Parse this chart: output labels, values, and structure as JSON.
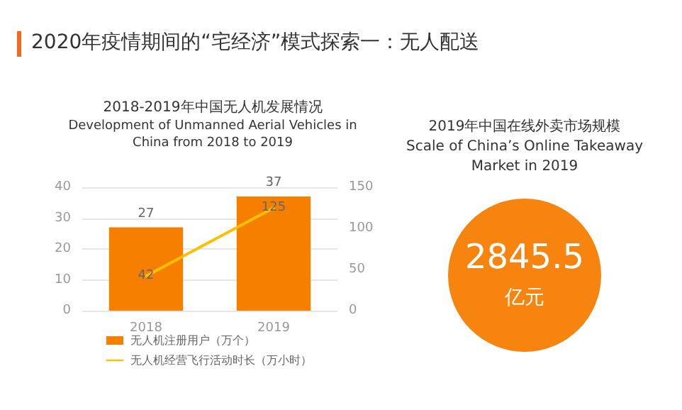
{
  "chart_data": [
    {
      "type": "other",
      "title": "2020年疫情期间的“宅经济”模式探索一：无人配送",
      "color": "#f26b1d"
    },
    {
      "type": "bar",
      "title": "2018-2019年中国无人机发展情况",
      "subtitle": "Development of Unmanned Aerial Vehicles in\nChina from 2018 to 2019",
      "categories": [
        "2018",
        "2019"
      ],
      "series": [
        {
          "name": "无人机注册用户（万个）",
          "color": "#f77f00",
          "values": [
            27,
            37
          ]
        },
        {
          "name": "无人机经营飞行活动时长（万小时）",
          "type": "line",
          "axis": "y2",
          "color": "#ffc000",
          "values": [
            42,
            125
          ]
        }
      ],
      "ylim": [
        0,
        40
      ],
      "yticks": [
        0,
        10,
        20,
        30,
        40
      ],
      "y2lim": [
        0,
        150
      ],
      "y2ticks": [
        0,
        50,
        100,
        150
      ],
      "grid": "y",
      "legend": "bottom",
      "data_labels": true,
      "marker": "none",
      "line_style": "solid"
    },
    {
      "type": "other",
      "title": "2019年中国在线外卖市场规模",
      "subtitle": "Scale of China’s Online Takeaway\nMarket in 2019",
      "annotations": [
        "2845.5",
        "亿元"
      ],
      "color": "#f7840f"
    }
  ]
}
